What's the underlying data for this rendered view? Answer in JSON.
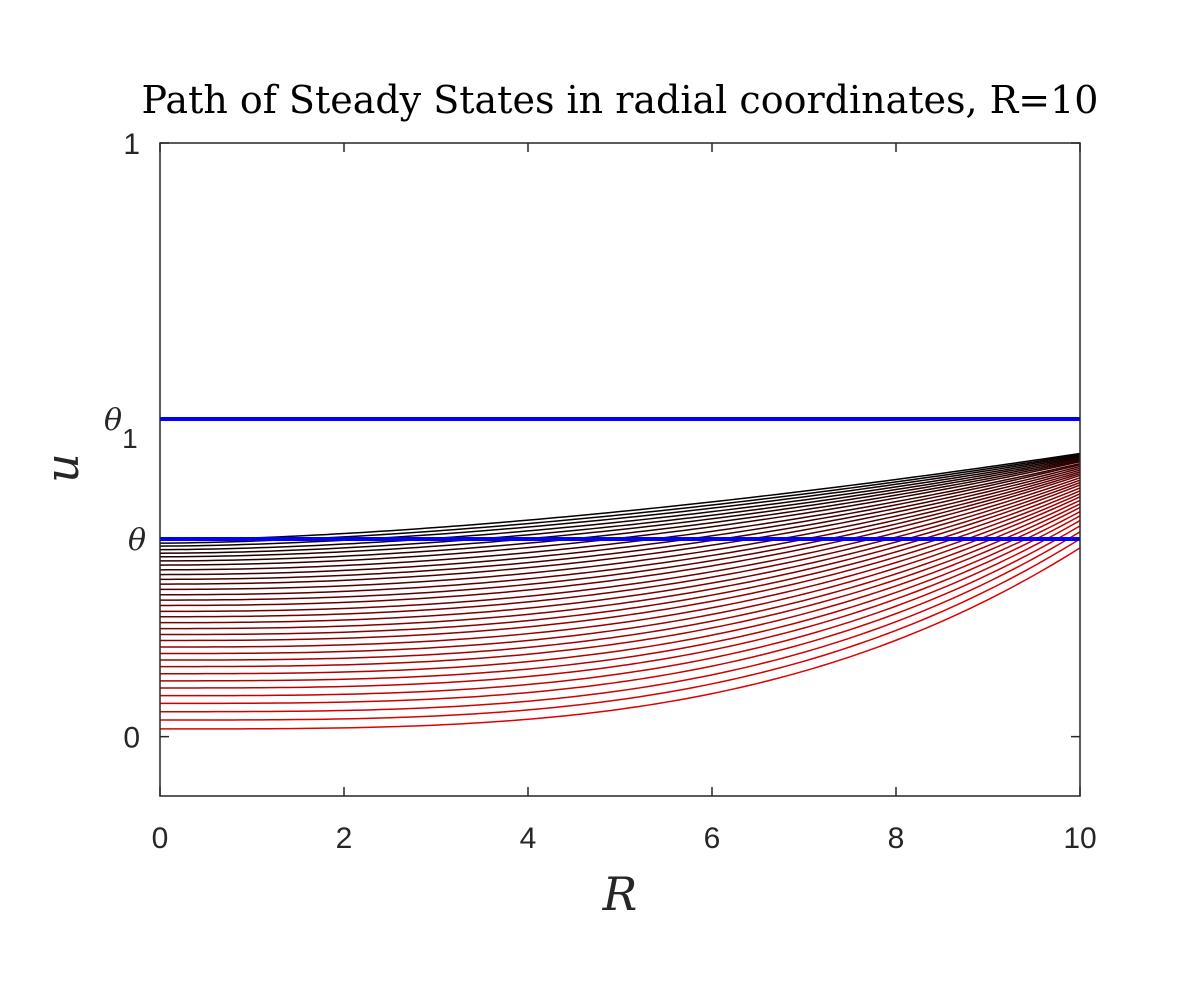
{
  "chart_data": {
    "type": "line",
    "title": "Path of Steady States in radial coordinates, R=10",
    "xlabel": "R",
    "ylabel": "u",
    "xlim": [
      0,
      10
    ],
    "ylim": [
      -0.1,
      1
    ],
    "grid": false,
    "x_ticks": [
      {
        "value": 0,
        "label": "0"
      },
      {
        "value": 2,
        "label": "2"
      },
      {
        "value": 4,
        "label": "4"
      },
      {
        "value": 6,
        "label": "6"
      },
      {
        "value": 8,
        "label": "8"
      },
      {
        "value": 10,
        "label": "10"
      }
    ],
    "y_ticks": [
      {
        "value": 0,
        "label": "0"
      },
      {
        "value": 1,
        "label": "1"
      }
    ],
    "reference_lines": [
      {
        "label": "θ",
        "y": 0.333,
        "color": "#0000ff"
      },
      {
        "label": "θ",
        "subscript": "1",
        "y": 0.535,
        "color": "#0000ff"
      }
    ],
    "curve_colors": {
      "start": "#e00000",
      "end": "#000000"
    },
    "steady_state_curves": [
      {
        "u_at_R0": 0.013,
        "u_at_R10": 0.318
      },
      {
        "u_at_R0": 0.028,
        "u_at_R10": 0.333
      },
      {
        "u_at_R0": 0.042,
        "u_at_R10": 0.345
      },
      {
        "u_at_R0": 0.056,
        "u_at_R10": 0.355
      },
      {
        "u_at_R0": 0.069,
        "u_at_R10": 0.364
      },
      {
        "u_at_R0": 0.082,
        "u_at_R10": 0.372
      },
      {
        "u_at_R0": 0.094,
        "u_at_R10": 0.379
      },
      {
        "u_at_R0": 0.106,
        "u_at_R10": 0.386
      },
      {
        "u_at_R0": 0.118,
        "u_at_R10": 0.392
      },
      {
        "u_at_R0": 0.129,
        "u_at_R10": 0.398
      },
      {
        "u_at_R0": 0.14,
        "u_at_R10": 0.404
      },
      {
        "u_at_R0": 0.151,
        "u_at_R10": 0.409
      },
      {
        "u_at_R0": 0.162,
        "u_at_R10": 0.414
      },
      {
        "u_at_R0": 0.172,
        "u_at_R10": 0.419
      },
      {
        "u_at_R0": 0.182,
        "u_at_R10": 0.424
      },
      {
        "u_at_R0": 0.192,
        "u_at_R10": 0.428
      },
      {
        "u_at_R0": 0.202,
        "u_at_R10": 0.432
      },
      {
        "u_at_R0": 0.211,
        "u_at_R10": 0.436
      },
      {
        "u_at_R0": 0.221,
        "u_at_R10": 0.44
      },
      {
        "u_at_R0": 0.23,
        "u_at_R10": 0.443
      },
      {
        "u_at_R0": 0.239,
        "u_at_R10": 0.446
      },
      {
        "u_at_R0": 0.248,
        "u_at_R10": 0.449
      },
      {
        "u_at_R0": 0.257,
        "u_at_R10": 0.452
      },
      {
        "u_at_R0": 0.265,
        "u_at_R10": 0.455
      },
      {
        "u_at_R0": 0.273,
        "u_at_R10": 0.458
      },
      {
        "u_at_R0": 0.281,
        "u_at_R10": 0.46
      },
      {
        "u_at_R0": 0.289,
        "u_at_R10": 0.463
      },
      {
        "u_at_R0": 0.296,
        "u_at_R10": 0.465
      },
      {
        "u_at_R0": 0.303,
        "u_at_R10": 0.467
      },
      {
        "u_at_R0": 0.309,
        "u_at_R10": 0.469
      },
      {
        "u_at_R0": 0.315,
        "u_at_R10": 0.471
      },
      {
        "u_at_R0": 0.321,
        "u_at_R10": 0.473
      },
      {
        "u_at_R0": 0.326,
        "u_at_R10": 0.475
      },
      {
        "u_at_R0": 0.331,
        "u_at_R10": 0.477
      }
    ]
  }
}
